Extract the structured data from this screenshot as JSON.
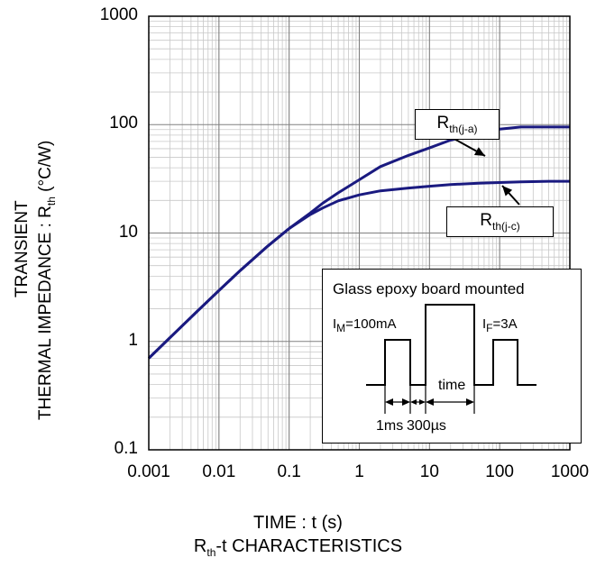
{
  "chart_data": {
    "type": "line",
    "scale": "log-log",
    "xlim": [
      0.001,
      1000
    ],
    "ylim": [
      0.1,
      1000
    ],
    "x_ticks": [
      "0.001",
      "0.01",
      "0.1",
      "1",
      "10",
      "100",
      "1000"
    ],
    "y_ticks": [
      "1000",
      "100",
      "10",
      "1",
      "0.1"
    ],
    "grid": true,
    "series": [
      {
        "name": "Rth(j-a)",
        "x": [
          0.001,
          0.002,
          0.005,
          0.01,
          0.02,
          0.05,
          0.1,
          0.2,
          0.3,
          0.5,
          1,
          2,
          5,
          10,
          20,
          50,
          100,
          200,
          500,
          1000
        ],
        "y": [
          0.7,
          1.08,
          1.92,
          2.95,
          4.5,
          7.6,
          11.0,
          15.3,
          18.8,
          23.5,
          31.0,
          41.0,
          52.0,
          61.0,
          72.0,
          83.0,
          91.0,
          95.0,
          95.0,
          95.0
        ]
      },
      {
        "name": "Rth(j-c)",
        "x": [
          0.001,
          0.002,
          0.005,
          0.01,
          0.02,
          0.05,
          0.1,
          0.2,
          0.3,
          0.5,
          1,
          2,
          5,
          10,
          20,
          50,
          100,
          200,
          500,
          1000
        ],
        "y": [
          0.7,
          1.08,
          1.92,
          2.95,
          4.5,
          7.6,
          11.0,
          14.8,
          17.0,
          19.8,
          22.5,
          24.5,
          26.0,
          27.0,
          28.0,
          28.8,
          29.2,
          29.6,
          30.0,
          30.0
        ]
      }
    ],
    "xlabel": "TIME : t (s)",
    "ylabel_line1": "TRANSIENT",
    "ylabel_line2_main": "THERMAL IMPEDANCE : R",
    "ylabel_line2_sub": "th",
    "ylabel_line2_unit": " (°C/W)",
    "caption_main": "R",
    "caption_sub": "th",
    "caption_rest": "-t CHARACTERISTICS",
    "callouts": [
      {
        "main": "R",
        "sub": "th(j-a)"
      },
      {
        "main": "R",
        "sub": "th(j-c)"
      }
    ],
    "inset": {
      "title": "Glass epoxy board mounted",
      "im_main": "I",
      "im_sub": "M",
      "im_rest": "=100mA",
      "if_main": "I",
      "if_sub": "F",
      "if_rest": "=3A",
      "time_label": "time",
      "t1_label": "1ms",
      "t2_label": "300µs"
    },
    "colors": {
      "curve": "#1a1a80",
      "grid_major": "#808080",
      "grid_minor": "#c8c8c8"
    }
  }
}
